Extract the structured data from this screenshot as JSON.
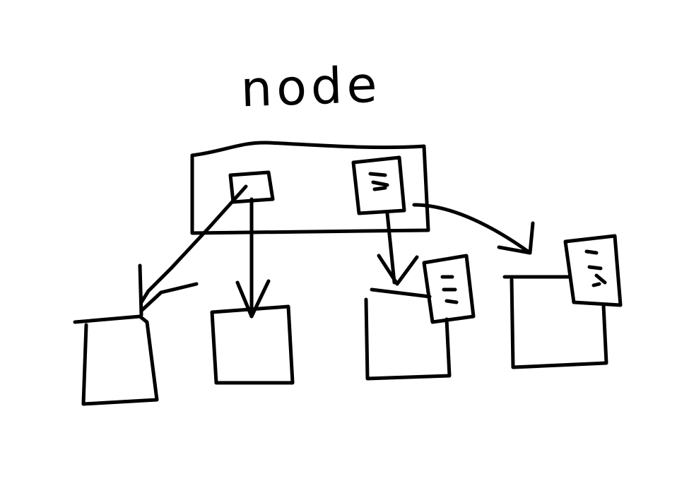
{
  "title": "node",
  "ink_color": "#000000",
  "background": "#ffffff"
}
